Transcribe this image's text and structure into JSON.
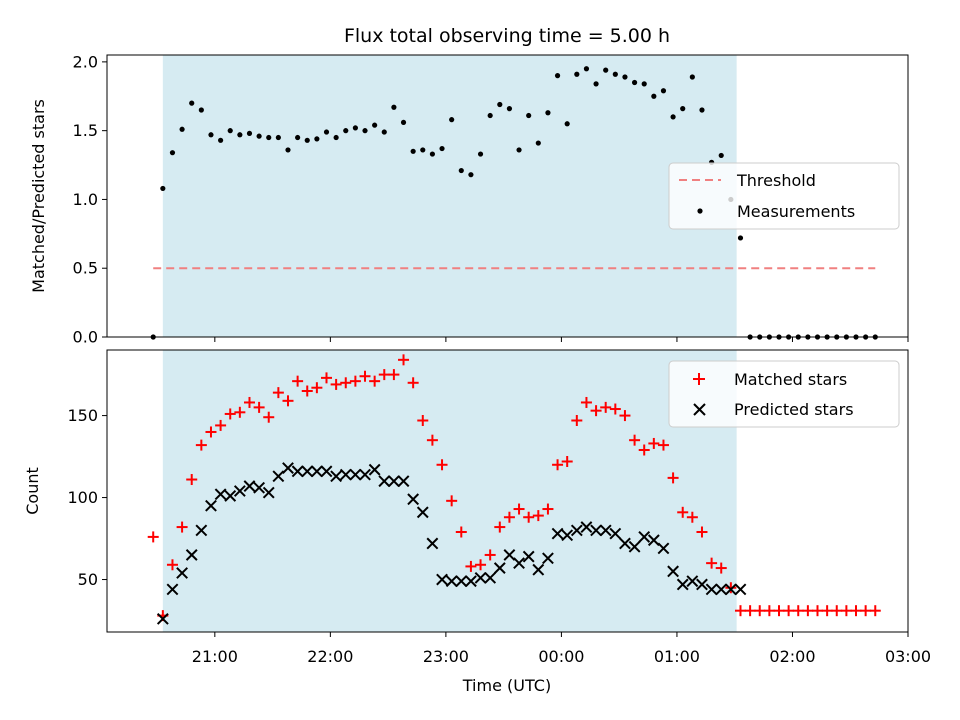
{
  "chart_data": [
    {
      "type": "scatter",
      "title": "Flux total observing time = 5.00 h",
      "ylabel": "Matched/Predicted stars",
      "xlabel": "",
      "ylim": [
        0,
        2.05
      ],
      "yticks": [
        "0.0",
        "0.5",
        "1.0",
        "1.5",
        "2.0"
      ],
      "shaded_interval": [
        "20:33",
        "01:31"
      ],
      "threshold": {
        "name": "Threshold",
        "value": 0.5,
        "x_range": [
          "20:28",
          "02:43"
        ],
        "color": "#f08080",
        "style": "dashed"
      },
      "series": [
        {
          "name": "Measurements",
          "color": "#000000",
          "marker": "dot",
          "x": [
            "20:28",
            "20:33",
            "20:38",
            "20:43",
            "20:48",
            "20:53",
            "20:58",
            "21:03",
            "21:08",
            "21:13",
            "21:18",
            "21:23",
            "21:28",
            "21:33",
            "21:38",
            "21:43",
            "21:48",
            "21:53",
            "21:58",
            "22:03",
            "22:08",
            "22:13",
            "22:18",
            "22:23",
            "22:28",
            "22:33",
            "22:38",
            "22:43",
            "22:48",
            "22:53",
            "22:58",
            "23:03",
            "23:08",
            "23:13",
            "23:18",
            "23:23",
            "23:28",
            "23:33",
            "23:38",
            "23:43",
            "23:48",
            "23:53",
            "23:58",
            "00:03",
            "00:08",
            "00:13",
            "00:18",
            "00:23",
            "00:28",
            "00:33",
            "00:38",
            "00:43",
            "00:48",
            "00:53",
            "00:58",
            "01:03",
            "01:08",
            "01:13",
            "01:18",
            "01:23",
            "01:28",
            "01:33",
            "01:38",
            "01:43",
            "01:48",
            "01:53",
            "01:58",
            "02:03",
            "02:08",
            "02:13",
            "02:18",
            "02:23",
            "02:28",
            "02:33",
            "02:38",
            "02:43"
          ],
          "y": [
            0.0,
            1.08,
            1.34,
            1.51,
            1.7,
            1.65,
            1.47,
            1.43,
            1.5,
            1.47,
            1.48,
            1.46,
            1.45,
            1.45,
            1.36,
            1.45,
            1.43,
            1.44,
            1.49,
            1.45,
            1.5,
            1.52,
            1.5,
            1.54,
            1.49,
            1.67,
            1.56,
            1.35,
            1.36,
            1.33,
            1.37,
            1.58,
            1.21,
            1.18,
            1.33,
            1.61,
            1.69,
            1.66,
            1.36,
            1.61,
            1.41,
            1.63,
            1.9,
            1.55,
            1.91,
            1.95,
            1.84,
            1.94,
            1.91,
            1.89,
            1.85,
            1.84,
            1.75,
            1.79,
            1.6,
            1.66,
            1.89,
            1.65,
            1.27,
            1.32,
            1.0,
            0.72,
            0.0,
            0.0,
            0.0,
            0.0,
            0.0,
            0.0,
            0.0,
            0.0,
            0.0,
            0.0,
            0.0,
            0.0,
            0.0,
            0.0
          ]
        }
      ],
      "legend": {
        "entries": [
          "Threshold",
          "Measurements"
        ],
        "placement": "center-right"
      }
    },
    {
      "type": "scatter",
      "title": "",
      "ylabel": "Count",
      "xlabel": "Time (UTC)",
      "ylim": [
        18,
        190
      ],
      "yticks": [
        "50",
        "100",
        "150"
      ],
      "xticks": [
        "21:00",
        "22:00",
        "23:00",
        "00:00",
        "01:00",
        "02:00",
        "03:00"
      ],
      "shaded_interval": [
        "20:33",
        "01:31"
      ],
      "series": [
        {
          "name": "Matched stars",
          "color": "#ff0000",
          "marker": "plus",
          "x": [
            "20:28",
            "20:33",
            "20:38",
            "20:43",
            "20:48",
            "20:53",
            "20:58",
            "21:03",
            "21:08",
            "21:13",
            "21:18",
            "21:23",
            "21:28",
            "21:33",
            "21:38",
            "21:43",
            "21:48",
            "21:53",
            "21:58",
            "22:03",
            "22:08",
            "22:13",
            "22:18",
            "22:23",
            "22:28",
            "22:33",
            "22:38",
            "22:43",
            "22:48",
            "22:53",
            "22:58",
            "23:03",
            "23:08",
            "23:13",
            "23:18",
            "23:23",
            "23:28",
            "23:33",
            "23:38",
            "23:43",
            "23:48",
            "23:53",
            "23:58",
            "00:03",
            "00:08",
            "00:13",
            "00:18",
            "00:23",
            "00:28",
            "00:33",
            "00:38",
            "00:43",
            "00:48",
            "00:53",
            "00:58",
            "01:03",
            "01:08",
            "01:13",
            "01:18",
            "01:23",
            "01:28",
            "01:33",
            "01:38",
            "01:43",
            "01:48",
            "01:53",
            "01:58",
            "02:03",
            "02:08",
            "02:13",
            "02:18",
            "02:23",
            "02:28",
            "02:33",
            "02:38",
            "02:43"
          ],
          "y": [
            76,
            28,
            59,
            82,
            111,
            132,
            140,
            144,
            151,
            152,
            158,
            155,
            149,
            164,
            159,
            171,
            165,
            167,
            173,
            169,
            170,
            171,
            174,
            171,
            175,
            175,
            184,
            170,
            147,
            135,
            120,
            98,
            79,
            58,
            59,
            65,
            82,
            88,
            93,
            88,
            89,
            93,
            120,
            122,
            147,
            158,
            153,
            155,
            154,
            150,
            135,
            129,
            133,
            132,
            112,
            91,
            88,
            79,
            60,
            57,
            45,
            31,
            31,
            31,
            31,
            31,
            31,
            31,
            31,
            31,
            31,
            31,
            31,
            31,
            31,
            31
          ]
        },
        {
          "name": "Predicted stars",
          "color": "#000000",
          "marker": "x",
          "x": [
            "20:33",
            "20:38",
            "20:43",
            "20:48",
            "20:53",
            "20:58",
            "21:03",
            "21:08",
            "21:13",
            "21:18",
            "21:23",
            "21:28",
            "21:33",
            "21:38",
            "21:43",
            "21:48",
            "21:53",
            "21:58",
            "22:03",
            "22:08",
            "22:13",
            "22:18",
            "22:23",
            "22:28",
            "22:33",
            "22:38",
            "22:43",
            "22:48",
            "22:53",
            "22:58",
            "23:03",
            "23:08",
            "23:13",
            "23:18",
            "23:23",
            "23:28",
            "23:33",
            "23:38",
            "23:43",
            "23:48",
            "23:53",
            "23:58",
            "00:03",
            "00:08",
            "00:13",
            "00:18",
            "00:23",
            "00:28",
            "00:33",
            "00:38",
            "00:43",
            "00:48",
            "00:53",
            "00:58",
            "01:03",
            "01:08",
            "01:13",
            "01:18",
            "01:23",
            "01:28",
            "01:33"
          ],
          "y": [
            26,
            44,
            54,
            65,
            80,
            95,
            102,
            101,
            104,
            107,
            106,
            103,
            113,
            118,
            116,
            116,
            116,
            116,
            113,
            114,
            114,
            114,
            117,
            110,
            110,
            110,
            99,
            91,
            72,
            50,
            49,
            49,
            49,
            51,
            51,
            57,
            65,
            60,
            64,
            56,
            63,
            78,
            77,
            80,
            82,
            80,
            80,
            78,
            72,
            70,
            76,
            74,
            69,
            55,
            47,
            49,
            47,
            44,
            44,
            44,
            44
          ]
        }
      ],
      "legend": {
        "entries": [
          "Matched stars",
          "Predicted stars"
        ],
        "placement": "top-right"
      }
    }
  ]
}
